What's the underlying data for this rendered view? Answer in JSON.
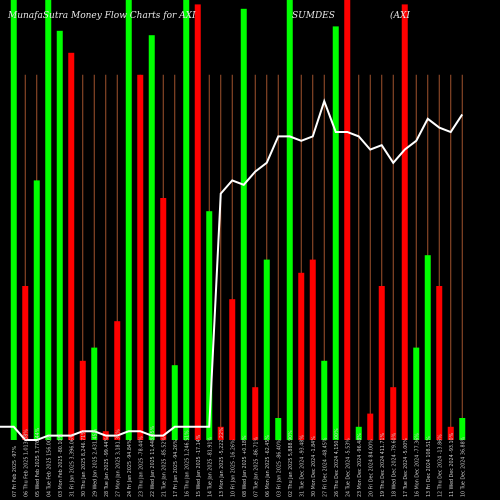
{
  "chart_data": {
    "type": "bar",
    "title": "MunafaSutra  Money Flow  Charts for AXI",
    "title_mid": "SUMDES",
    "title_end": "(AXI",
    "ylim": [
      0,
      100
    ],
    "grid": true,
    "colors": {
      "background": "#000000",
      "up": "#00ff00",
      "down": "#ff0000",
      "grid": "#a0522d",
      "line": "#ffffff"
    },
    "bars": [
      {
        "value": 100,
        "dir": "up"
      },
      {
        "value": 35,
        "dir": "down"
      },
      {
        "value": 59,
        "dir": "up"
      },
      {
        "value": 100,
        "dir": "up"
      },
      {
        "value": 93,
        "dir": "up"
      },
      {
        "value": 88,
        "dir": "down"
      },
      {
        "value": 18,
        "dir": "down"
      },
      {
        "value": 21,
        "dir": "up"
      },
      {
        "value": 2,
        "dir": "down"
      },
      {
        "value": 27,
        "dir": "down"
      },
      {
        "value": 100,
        "dir": "up"
      },
      {
        "value": 83,
        "dir": "down"
      },
      {
        "value": 92,
        "dir": "up"
      },
      {
        "value": 55,
        "dir": "down"
      },
      {
        "value": 17,
        "dir": "up"
      },
      {
        "value": 100,
        "dir": "up"
      },
      {
        "value": 99,
        "dir": "down"
      },
      {
        "value": 52,
        "dir": "up"
      },
      {
        "value": 3,
        "dir": "down"
      },
      {
        "value": 32,
        "dir": "down"
      },
      {
        "value": 98,
        "dir": "up"
      },
      {
        "value": 12,
        "dir": "down"
      },
      {
        "value": 41,
        "dir": "up"
      },
      {
        "value": 5,
        "dir": "up"
      },
      {
        "value": 100,
        "dir": "up"
      },
      {
        "value": 38,
        "dir": "down"
      },
      {
        "value": 41,
        "dir": "down"
      },
      {
        "value": 18,
        "dir": "up"
      },
      {
        "value": 94,
        "dir": "up"
      },
      {
        "value": 100,
        "dir": "down"
      },
      {
        "value": 3,
        "dir": "up"
      },
      {
        "value": 6,
        "dir": "down"
      },
      {
        "value": 35,
        "dir": "down"
      },
      {
        "value": 12,
        "dir": "down"
      },
      {
        "value": 99,
        "dir": "down"
      },
      {
        "value": 21,
        "dir": "up"
      },
      {
        "value": 42,
        "dir": "up"
      },
      {
        "value": 35,
        "dir": "down"
      },
      {
        "value": 3,
        "dir": "down"
      },
      {
        "value": 5,
        "dir": "up"
      }
    ],
    "line": [
      3,
      0,
      0,
      1,
      1,
      1,
      2,
      2,
      1,
      1,
      2,
      2,
      1,
      1,
      3,
      3,
      3,
      3,
      56,
      59,
      58,
      61,
      63,
      69,
      69,
      68,
      69,
      77,
      70,
      70,
      69,
      66,
      67,
      63,
      66,
      68,
      73,
      71,
      70,
      74
    ],
    "x_labels": [
      "07 Fri Feb 2025 -97%",
      "06 Thu Feb 2025 1,013.08%",
      "05 Wed Feb 2025 3,776.44%",
      "04 Tue Feb 2025 156.00%",
      "03 Mon Feb 2025 -80.10%",
      "31 Fri Jan 2025 3,396.06%",
      "30 Thu Jan 2025 8,246.71%",
      "29 Wed Jan 2025 2,431.45%",
      "28 Tue Jan 2025 -99.44%",
      "27 Mon Jan 2025 3,181.35%",
      "24 Fri Jan 2025 -94.84%",
      "23 Thu Jan 2025 -78.44%",
      "22 Wed Jan 2025 11,448.35%",
      "21 Tue Jan 2025 -85.52%",
      "17 Fri Jan 2025 -94.26%",
      "16 Thu Jan 2025 1,246.51%",
      "15 Wed Jan 2025 -17.14%",
      "14 Tue Jan 2025 -81.91%",
      "13 Mon Jan 2025 -5,222.22%",
      "10 Fri Jan 2025 -16.26%",
      "08 Wed Jan 2025 +0.18%",
      "07 Tue Jan 2025 -86.71%",
      "06 Mon Jan 2025 -62.45%",
      "03 Fri Jan 2025 -86.40%",
      "02 Thu Jan 2025 5,888.90%",
      "31 Tue Dec 2024 -93.48%",
      "30 Mon Dec 2024 -1.84%",
      "27 Fri Dec 2024 -48.45%",
      "26 Thu Dec 2024 4,150.00%",
      "24 Tue Dec 2024 -5.53%",
      "23 Mon Dec 2024 -96.48%",
      "20 Fri Dec 2024 84.00%",
      "19 Thu Dec 2024 411.71%",
      "18 Wed Dec 2024 -79.60%",
      "17 Tue Dec 2024 -5.00%",
      "16 Mon Dec 2024 -77.36%",
      "13 Fri Dec 2024 108.51%",
      "12 Thu Dec 2024 -13.86%",
      "11 Wed Dec 2024 -93.10%",
      "10 Tue Dec 2024 36.88%"
    ]
  }
}
